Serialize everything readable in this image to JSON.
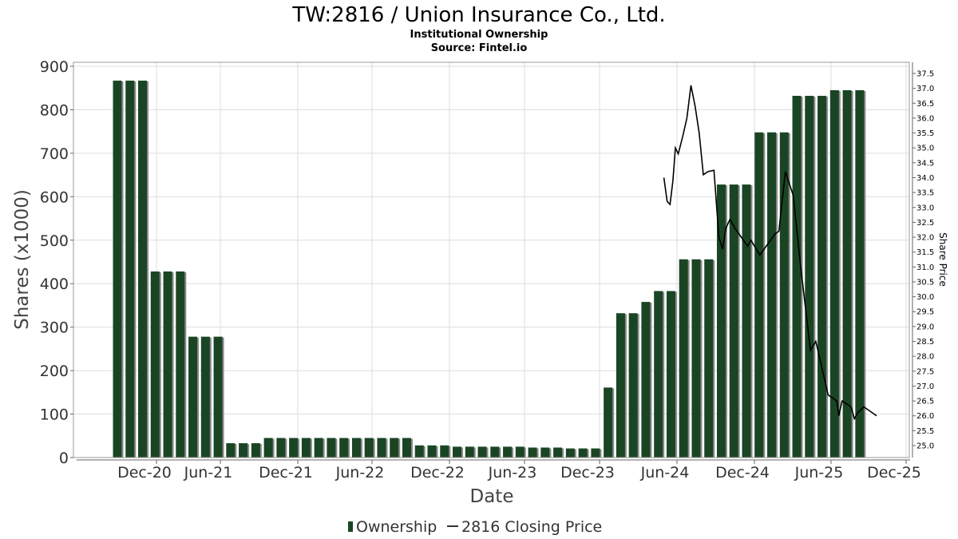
{
  "header": {
    "title": "TW:2816 / Union Insurance Co., Ltd.",
    "subtitle": "Institutional Ownership",
    "source": "Source: Fintel.io"
  },
  "legend": {
    "ownership": "Ownership",
    "price": "2816 Closing Price"
  },
  "chart_data": {
    "type": "bar",
    "xlabel": "Date",
    "ylabel": "Shares (x1000)",
    "y2label": "Share Price",
    "x_ticks": [
      "Dec-20",
      "Jun-21",
      "Dec-21",
      "Jun-22",
      "Dec-22",
      "Jun-23",
      "Dec-23",
      "Jun-24",
      "Dec-24",
      "Jun-25",
      "Dec-25"
    ],
    "ylim": [
      0,
      900
    ],
    "y_ticks": [
      0,
      100,
      200,
      300,
      400,
      500,
      600,
      700,
      800,
      900
    ],
    "y2lim": [
      24.6,
      37.75
    ],
    "y2_ticks": [
      "25.0",
      "25.5",
      "26.0",
      "26.5",
      "27.0",
      "27.5",
      "28.0",
      "28.5",
      "29.0",
      "29.5",
      "30.0",
      "30.5",
      "31.0",
      "31.5",
      "32.0",
      "32.5",
      "33.0",
      "33.5",
      "34.0",
      "34.5",
      "35.0",
      "35.5",
      "36.0",
      "36.5",
      "37.0",
      "37.5"
    ],
    "grid": true,
    "legend_position": "bottom",
    "colors": {
      "bar": "#1a4524",
      "bar_shadow": "#8a8a8a",
      "line": "#000000",
      "grid": "#dddddd"
    },
    "series": [
      {
        "name": "Ownership",
        "type": "bar",
        "values": [
          867,
          867,
          867,
          428,
          428,
          428,
          278,
          278,
          278,
          33,
          33,
          33,
          45,
          45,
          45,
          45,
          45,
          45,
          45,
          45,
          45,
          45,
          45,
          45,
          28,
          28,
          28,
          25,
          25,
          25,
          25,
          25,
          25,
          23,
          23,
          23,
          21,
          21,
          21,
          161,
          332,
          332,
          358,
          383,
          383,
          456,
          456,
          456,
          628,
          628,
          628,
          748,
          748,
          748,
          832,
          832,
          832,
          845,
          845,
          845
        ]
      },
      {
        "name": "2816 Closing Price",
        "type": "line",
        "points": [
          [
            "2024-04-20",
            34.0
          ],
          [
            "2024-04-28",
            33.2
          ],
          [
            "2024-05-05",
            33.1
          ],
          [
            "2024-05-12",
            33.9
          ],
          [
            "2024-05-18",
            35.0
          ],
          [
            "2024-05-25",
            34.8
          ],
          [
            "2024-06-05",
            35.4
          ],
          [
            "2024-06-15",
            36.0
          ],
          [
            "2024-06-25",
            37.1
          ],
          [
            "2024-07-05",
            36.4
          ],
          [
            "2024-07-15",
            35.5
          ],
          [
            "2024-07-25",
            34.1
          ],
          [
            "2024-08-05",
            34.2
          ],
          [
            "2024-08-20",
            34.25
          ],
          [
            "2024-09-01",
            32.0
          ],
          [
            "2024-09-10",
            31.6
          ],
          [
            "2024-09-18",
            32.3
          ],
          [
            "2024-09-28",
            32.6
          ],
          [
            "2024-10-10",
            32.3
          ],
          [
            "2024-11-10",
            31.7
          ],
          [
            "2024-11-18",
            31.9
          ],
          [
            "2024-12-10",
            31.4
          ],
          [
            "2025-01-15",
            32.1
          ],
          [
            "2025-01-25",
            32.2
          ],
          [
            "2025-02-10",
            34.2
          ],
          [
            "2025-03-01",
            33.4
          ],
          [
            "2025-03-20",
            30.9
          ],
          [
            "2025-04-12",
            28.2
          ],
          [
            "2025-04-25",
            28.5
          ],
          [
            "2025-05-25",
            26.7
          ],
          [
            "2025-06-05",
            26.6
          ],
          [
            "2025-06-15",
            26.5
          ],
          [
            "2025-06-20",
            26.0
          ],
          [
            "2025-06-28",
            26.5
          ],
          [
            "2025-07-20",
            26.3
          ],
          [
            "2025-07-28",
            25.9
          ],
          [
            "2025-08-05",
            26.1
          ],
          [
            "2025-08-20",
            26.3
          ],
          [
            "2025-09-10",
            26.1
          ],
          [
            "2025-09-20",
            26.0
          ]
        ]
      }
    ]
  }
}
